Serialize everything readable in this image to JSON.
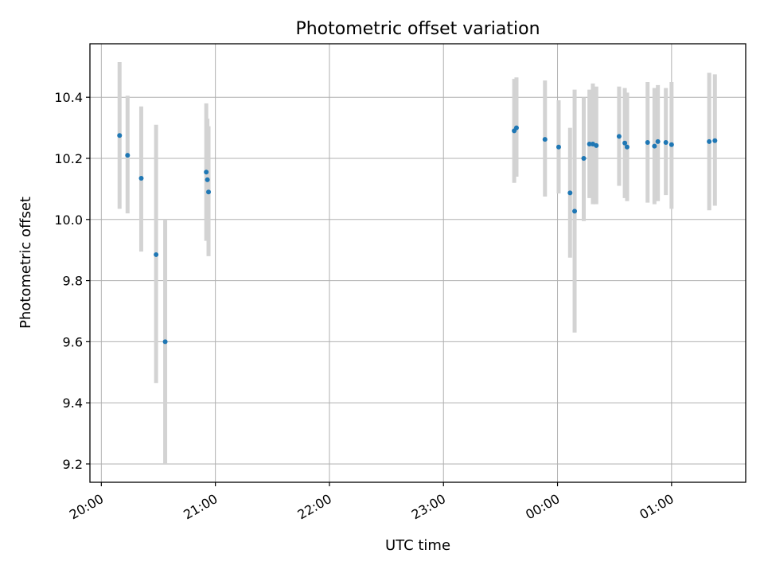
{
  "chart_data": {
    "type": "scatter",
    "title": "Photometric offset variation",
    "xlabel": "UTC time",
    "ylabel": "Photometric offset",
    "x_unit": "hours (UTC, time of day; values past 24 are after midnight)",
    "xlim": [
      19.9,
      25.65
    ],
    "ylim": [
      9.14,
      10.575
    ],
    "x_ticks": [
      20,
      21,
      22,
      23,
      24,
      25
    ],
    "x_tick_labels": [
      "20:00",
      "21:00",
      "22:00",
      "23:00",
      "00:00",
      "01:00"
    ],
    "y_ticks": [
      9.2,
      9.4,
      9.6,
      9.8,
      10.0,
      10.2,
      10.4
    ],
    "y_tick_labels": [
      "9.2",
      "9.4",
      "9.6",
      "9.8",
      "10.0",
      "10.2",
      "10.4"
    ],
    "grid": true,
    "point_color": "#1f77b4",
    "errorbar_color": "#d3d3d3",
    "points": [
      {
        "x": 20.16,
        "y": 10.275,
        "low": 10.035,
        "high": 10.515
      },
      {
        "x": 20.23,
        "y": 10.21,
        "low": 10.02,
        "high": 10.405
      },
      {
        "x": 20.35,
        "y": 10.135,
        "low": 9.895,
        "high": 10.37
      },
      {
        "x": 20.48,
        "y": 9.885,
        "low": 9.465,
        "high": 10.31
      },
      {
        "x": 20.56,
        "y": 9.6,
        "low": 9.2,
        "high": 10.0
      },
      {
        "x": 20.92,
        "y": 10.155,
        "low": 9.93,
        "high": 10.38
      },
      {
        "x": 20.93,
        "y": 10.13,
        "low": 9.97,
        "high": 10.33
      },
      {
        "x": 20.94,
        "y": 10.09,
        "low": 9.88,
        "high": 10.305
      },
      {
        "x": 23.62,
        "y": 10.29,
        "low": 10.12,
        "high": 10.46
      },
      {
        "x": 23.64,
        "y": 10.3,
        "low": 10.14,
        "high": 10.465
      },
      {
        "x": 23.89,
        "y": 10.262,
        "low": 10.075,
        "high": 10.455
      },
      {
        "x": 24.01,
        "y": 10.237,
        "low": 10.085,
        "high": 10.39
      },
      {
        "x": 24.11,
        "y": 10.087,
        "low": 9.875,
        "high": 10.3
      },
      {
        "x": 24.15,
        "y": 10.027,
        "low": 9.63,
        "high": 10.425
      },
      {
        "x": 24.23,
        "y": 10.2,
        "low": 9.995,
        "high": 10.4
      },
      {
        "x": 24.28,
        "y": 10.247,
        "low": 10.07,
        "high": 10.425
      },
      {
        "x": 24.31,
        "y": 10.247,
        "low": 10.05,
        "high": 10.445
      },
      {
        "x": 24.34,
        "y": 10.242,
        "low": 10.05,
        "high": 10.435
      },
      {
        "x": 24.54,
        "y": 10.272,
        "low": 10.11,
        "high": 10.435
      },
      {
        "x": 24.59,
        "y": 10.25,
        "low": 10.07,
        "high": 10.43
      },
      {
        "x": 24.61,
        "y": 10.237,
        "low": 10.06,
        "high": 10.415
      },
      {
        "x": 24.79,
        "y": 10.252,
        "low": 10.055,
        "high": 10.45
      },
      {
        "x": 24.85,
        "y": 10.24,
        "low": 10.05,
        "high": 10.43
      },
      {
        "x": 24.88,
        "y": 10.255,
        "low": 10.06,
        "high": 10.44
      },
      {
        "x": 24.95,
        "y": 10.252,
        "low": 10.08,
        "high": 10.43
      },
      {
        "x": 25.0,
        "y": 10.245,
        "low": 10.035,
        "high": 10.45
      },
      {
        "x": 25.33,
        "y": 10.255,
        "low": 10.03,
        "high": 10.48
      },
      {
        "x": 25.38,
        "y": 10.258,
        "low": 10.045,
        "high": 10.475
      }
    ]
  }
}
